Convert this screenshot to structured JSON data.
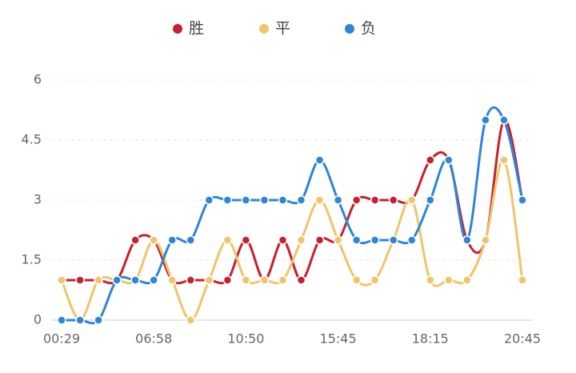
{
  "chart_data": {
    "type": "line",
    "smooth": true,
    "legend": "top",
    "grid": true,
    "categories": [
      "00:29",
      null,
      null,
      null,
      null,
      "06:58",
      null,
      null,
      null,
      null,
      "10:50",
      null,
      null,
      null,
      null,
      "15:45",
      null,
      null,
      null,
      null,
      "18:15",
      null,
      null,
      null,
      null,
      "20:45"
    ],
    "series": [
      {
        "name": "胜",
        "color": "#c8202f",
        "values": [
          1,
          1,
          1,
          1,
          2,
          2,
          1,
          1,
          1,
          1,
          2,
          1,
          2,
          1,
          2,
          2,
          3,
          3,
          3,
          3,
          4,
          4,
          2,
          2,
          5,
          3
        ]
      },
      {
        "name": "平",
        "color": "#f0c46a",
        "values": [
          1,
          0,
          1,
          1,
          1,
          2,
          1,
          0,
          1,
          2,
          1,
          1,
          1,
          2,
          3,
          2,
          1,
          1,
          2,
          3,
          1,
          1,
          1,
          2,
          4,
          1
        ]
      },
      {
        "name": "负",
        "color": "#2d86d6",
        "values": [
          0,
          0,
          0,
          1,
          1,
          1,
          2,
          2,
          3,
          3,
          3,
          3,
          3,
          3,
          4,
          3,
          2,
          2,
          2,
          2,
          3,
          4,
          2,
          5,
          5,
          3
        ]
      }
    ],
    "ylim": [
      0,
      6
    ],
    "yticks": [
      0,
      1.5,
      3,
      4.5,
      6
    ]
  }
}
